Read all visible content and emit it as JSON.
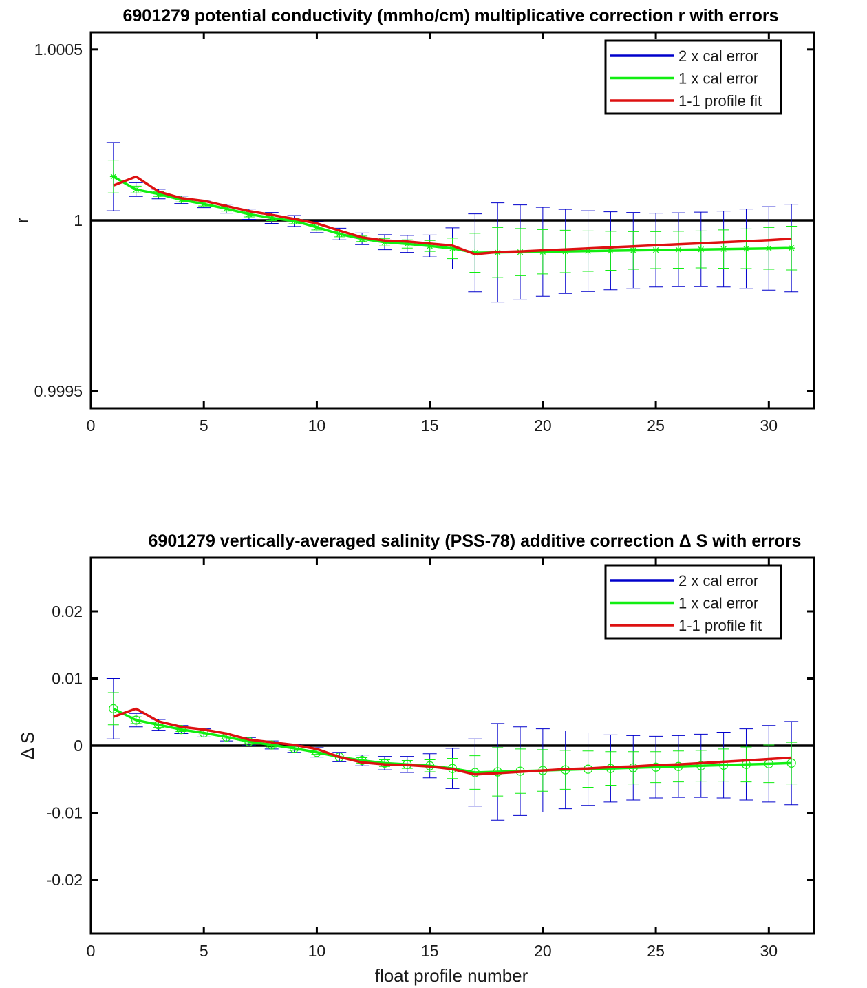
{
  "colors": {
    "cal2": "#0000cc",
    "cal1": "#11ee11",
    "fit": "#dd1111",
    "zero": "#000000",
    "axes": "#000000"
  },
  "chart_data": [
    {
      "type": "line",
      "title": "6901279 potential conductivity (mmho/cm) multiplicative correction r with errors",
      "xlabel": "",
      "ylabel": "r",
      "xlim": [
        0,
        32
      ],
      "ylim": [
        0.99945,
        1.00055
      ],
      "xticks": [
        0,
        5,
        10,
        15,
        20,
        25,
        30
      ],
      "xtick_labels": [
        "0",
        "5",
        "10",
        "15",
        "20",
        "25",
        "30"
      ],
      "yticks": [
        0.9995,
        1,
        1.0005
      ],
      "ytick_labels": [
        "0.9995",
        "1",
        "1.0005"
      ],
      "reference_line": 1,
      "marker": "asterisk",
      "grid": false,
      "legend_position": "top-right",
      "legend": [
        "2 x cal error",
        "1 x cal error",
        "1-1 profile fit"
      ],
      "x": [
        1,
        2,
        3,
        4,
        5,
        6,
        7,
        8,
        9,
        10,
        11,
        12,
        13,
        14,
        15,
        16,
        17,
        18,
        19,
        20,
        21,
        22,
        23,
        24,
        25,
        26,
        27,
        28,
        29,
        30,
        31
      ],
      "series": [
        {
          "name": "1-1 profile fit",
          "values": [
            1.000102,
            1.000128,
            1.000084,
            1.000065,
            1.000057,
            1.000042,
            1.000027,
            1.000016,
            1.000004,
            0.999991,
            0.99997,
            0.99995,
            0.999941,
            0.999938,
            0.999932,
            0.999926,
            0.999901,
            0.999907,
            0.999909,
            0.999912,
            0.999915,
            0.999918,
            0.999921,
            0.999924,
            0.999927,
            0.99993,
            0.999933,
            0.999936,
            0.999939,
            0.999942,
            0.999946
          ]
        },
        {
          "name": "1 x cal error",
          "values": [
            1.000128,
            1.00009,
            1.000077,
            1.00006,
            1.000048,
            1.000034,
            1.000018,
            1.000007,
            0.999998,
            0.99998,
            0.99996,
            0.999946,
            0.999936,
            0.999931,
            0.999925,
            0.999918,
            0.999905,
            0.999906,
            0.999907,
            0.999908,
            0.999909,
            0.99991,
            0.999911,
            0.999912,
            0.999913,
            0.999914,
            0.999915,
            0.999916,
            0.999917,
            0.999918,
            0.999919
          ],
          "err1": [
            4.8e-05,
            1e-05,
            7e-06,
            6e-06,
            6e-06,
            7e-06,
            8e-06,
            8e-06,
            8e-06,
            8e-06,
            8e-06,
            8e-06,
            1.1e-05,
            1.2e-05,
            1.6e-05,
            3e-05,
            5.7e-05,
            7.3e-05,
            6.9e-05,
            6.5e-05,
            6.2e-05,
            5.9e-05,
            5.7e-05,
            5.5e-05,
            5.4e-05,
            5.4e-05,
            5.4e-05,
            5.6e-05,
            5.8e-05,
            6.1e-05,
            6.4e-05
          ],
          "err2": [
            0.0001,
            2e-05,
            1.4e-05,
            1.1e-05,
            1.1e-05,
            1.3e-05,
            1.5e-05,
            1.6e-05,
            1.6e-05,
            1.6e-05,
            1.7e-05,
            1.7e-05,
            2.2e-05,
            2.5e-05,
            3.2e-05,
            6e-05,
            0.000114,
            0.000145,
            0.000138,
            0.00013,
            0.000123,
            0.000118,
            0.000114,
            0.000111,
            0.000108,
            0.000108,
            0.000109,
            0.000111,
            0.000116,
            0.000122,
            0.000128
          ]
        }
      ]
    },
    {
      "type": "line",
      "title": "6901279 vertically-averaged salinity (PSS-78) additive correction Δ S with errors",
      "xlabel": "float profile number",
      "ylabel": "Δ S",
      "xlim": [
        0,
        32
      ],
      "ylim": [
        -0.028,
        0.028
      ],
      "xticks": [
        0,
        5,
        10,
        15,
        20,
        25,
        30
      ],
      "xtick_labels": [
        "0",
        "5",
        "10",
        "15",
        "20",
        "25",
        "30"
      ],
      "yticks": [
        -0.02,
        -0.01,
        0,
        0.01,
        0.02
      ],
      "ytick_labels": [
        "-0.02",
        "-0.01",
        "0",
        "0.01",
        "0.02"
      ],
      "reference_line": 0,
      "marker": "circle",
      "grid": false,
      "legend_position": "top-right",
      "legend": [
        "2 x cal error",
        "1 x cal error",
        "1-1 profile fit"
      ],
      "x": [
        1,
        2,
        3,
        4,
        5,
        6,
        7,
        8,
        9,
        10,
        11,
        12,
        13,
        14,
        15,
        16,
        17,
        18,
        19,
        20,
        21,
        22,
        23,
        24,
        25,
        26,
        27,
        28,
        29,
        30,
        31
      ],
      "series": [
        {
          "name": "1-1 profile fit",
          "values": [
            0.0043,
            0.0055,
            0.0036,
            0.0028,
            0.0024,
            0.0018,
            0.0009,
            0.0005,
            0.0001,
            -0.0005,
            -0.0017,
            -0.0025,
            -0.0028,
            -0.0029,
            -0.0031,
            -0.0035,
            -0.0043,
            -0.0041,
            -0.0039,
            -0.0037,
            -0.0035,
            -0.0034,
            -0.0032,
            -0.0031,
            -0.0029,
            -0.0028,
            -0.0026,
            -0.0024,
            -0.0022,
            -0.002,
            -0.0018
          ]
        },
        {
          "name": "1 x cal error",
          "values": [
            0.0055,
            0.0038,
            0.0031,
            0.0024,
            0.0019,
            0.0013,
            0.0006,
            0.0001,
            -0.0004,
            -0.001,
            -0.0017,
            -0.0022,
            -0.0026,
            -0.0028,
            -0.003,
            -0.0034,
            -0.004,
            -0.0039,
            -0.0038,
            -0.0037,
            -0.0036,
            -0.0035,
            -0.0034,
            -0.0033,
            -0.0032,
            -0.0031,
            -0.003,
            -0.0029,
            -0.0028,
            -0.0027,
            -0.0026
          ],
          "err1": [
            0.0024,
            0.0005,
            0.0004,
            0.0003,
            0.0003,
            0.0003,
            0.0003,
            0.0003,
            0.0003,
            0.0003,
            0.0003,
            0.0004,
            0.0005,
            0.0006,
            0.0009,
            0.0015,
            0.0025,
            0.0036,
            0.0033,
            0.0031,
            0.0029,
            0.0027,
            0.0025,
            0.0024,
            0.0023,
            0.0023,
            0.0023,
            0.0024,
            0.0026,
            0.0028,
            0.0031
          ],
          "err2": [
            0.0045,
            0.001,
            0.0008,
            0.0006,
            0.0006,
            0.0006,
            0.0006,
            0.0006,
            0.0006,
            0.0007,
            0.0007,
            0.0008,
            0.001,
            0.0012,
            0.0018,
            0.003,
            0.005,
            0.0072,
            0.0066,
            0.0062,
            0.0058,
            0.0054,
            0.005,
            0.0048,
            0.0046,
            0.0046,
            0.0047,
            0.0049,
            0.0053,
            0.0057,
            0.0062
          ]
        }
      ]
    }
  ]
}
